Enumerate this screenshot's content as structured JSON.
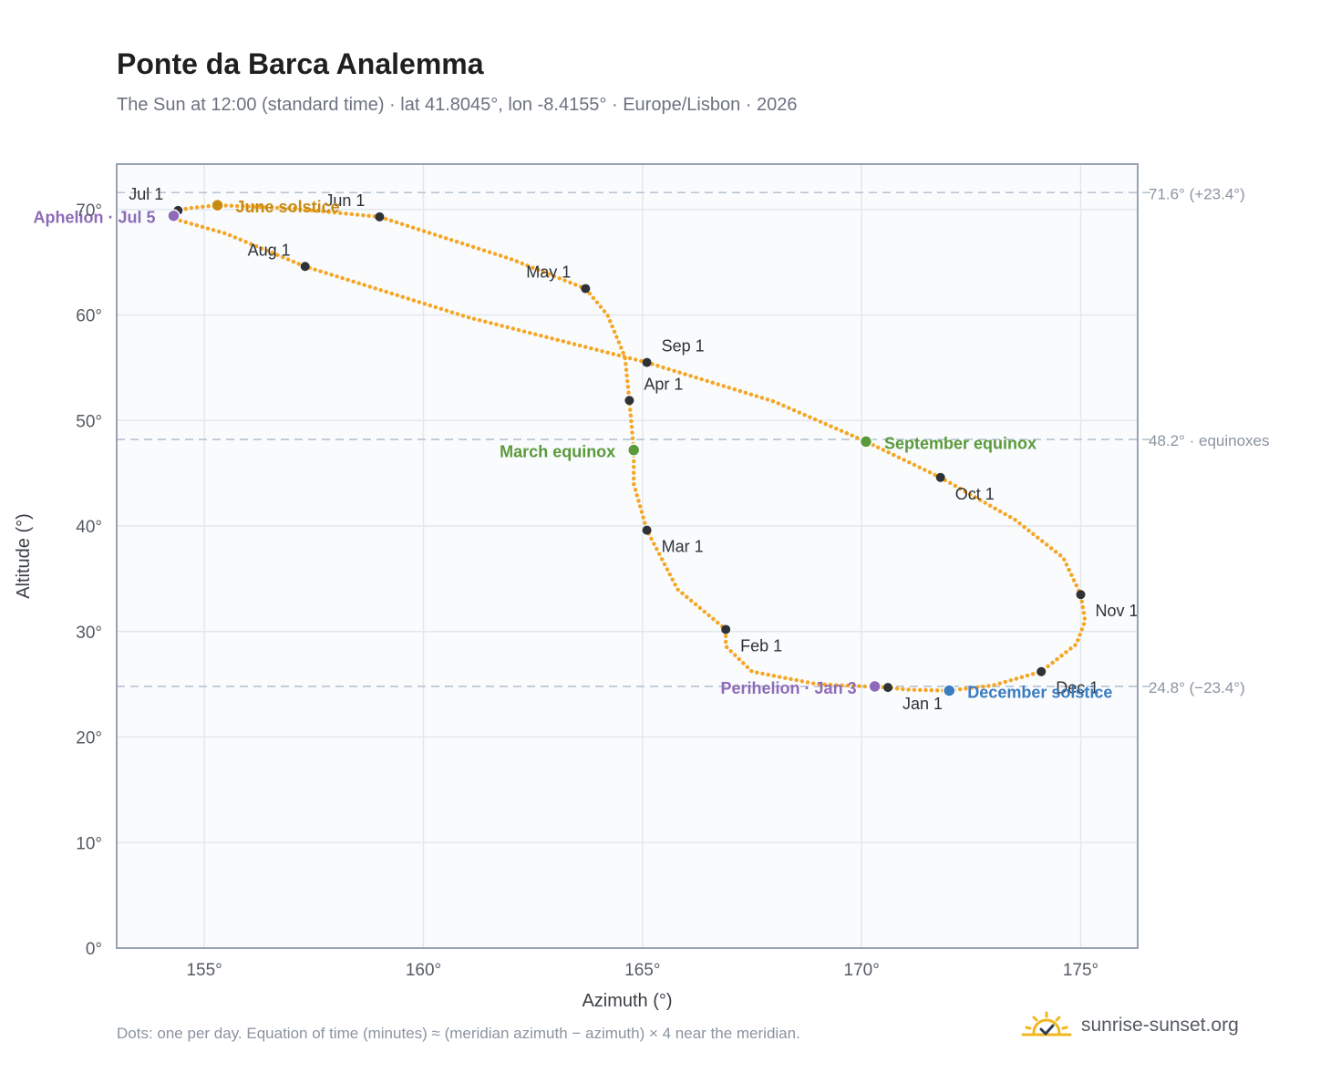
{
  "header": {
    "title": "Ponte da Barca Analemma",
    "subtitle": "The Sun at 12:00 (standard time) · lat 41.8045°, lon -8.4155° · Europe/Lisbon · 2026"
  },
  "footer": {
    "note": "Dots: one per day. Equation of time (minutes) ≈ (meridian azimuth − azimuth) × 4 near the meridian.",
    "brand": "sunrise-sunset.org",
    "brand_icon": "sun-check-icon"
  },
  "colors": {
    "curve": "#f5a623",
    "month_marker": "#2f3337",
    "solstice_june": "#c98a12",
    "solstice_december": "#3a7cc0",
    "equinox": "#5a9a3a",
    "apsis": "#8e6bb8",
    "reference_line": "#b6c3d1",
    "plot_bg": "#f9fbfd",
    "grid": "#e3e8ee",
    "frame": "#98a2b0"
  },
  "chart_data": {
    "type": "scatter",
    "xlabel": "Azimuth (°)",
    "ylabel": "Altitude (°)",
    "xlim": [
      153,
      176.3
    ],
    "ylim": [
      0,
      74.3
    ],
    "xticks": [
      155,
      160,
      165,
      170,
      175
    ],
    "yticks": [
      0,
      10,
      20,
      30,
      40,
      50,
      60,
      70
    ],
    "tick_suffix": "°",
    "grid": true,
    "reference_lines": [
      {
        "y": 71.6,
        "label": "71.6° (+23.4°)"
      },
      {
        "y": 48.2,
        "label": "48.2° · equinoxes"
      },
      {
        "y": 24.8,
        "label": "24.8° (−23.4°)"
      }
    ],
    "path_points": [
      {
        "az": 170.6,
        "alt": 24.7
      },
      {
        "az": 169.0,
        "alt": 25.0
      },
      {
        "az": 167.5,
        "alt": 26.2
      },
      {
        "az": 166.9,
        "alt": 28.6
      },
      {
        "az": 166.9,
        "alt": 30.2
      },
      {
        "az": 165.8,
        "alt": 34.0
      },
      {
        "az": 165.1,
        "alt": 39.6
      },
      {
        "az": 164.8,
        "alt": 44.0
      },
      {
        "az": 164.8,
        "alt": 47.2
      },
      {
        "az": 164.7,
        "alt": 51.9
      },
      {
        "az": 164.6,
        "alt": 56.0
      },
      {
        "az": 164.2,
        "alt": 60.0
      },
      {
        "az": 163.7,
        "alt": 62.5
      },
      {
        "az": 162.0,
        "alt": 65.3
      },
      {
        "az": 159.0,
        "alt": 69.3
      },
      {
        "az": 157.0,
        "alt": 70.1
      },
      {
        "az": 155.3,
        "alt": 70.4
      },
      {
        "az": 154.6,
        "alt": 70.1
      },
      {
        "az": 154.3,
        "alt": 69.6
      },
      {
        "az": 154.4,
        "alt": 69.0
      },
      {
        "az": 155.5,
        "alt": 67.7
      },
      {
        "az": 157.3,
        "alt": 64.6
      },
      {
        "az": 161.0,
        "alt": 59.8
      },
      {
        "az": 165.1,
        "alt": 55.5
      },
      {
        "az": 168.0,
        "alt": 51.8
      },
      {
        "az": 170.1,
        "alt": 48.0
      },
      {
        "az": 171.8,
        "alt": 44.6
      },
      {
        "az": 173.5,
        "alt": 40.6
      },
      {
        "az": 174.6,
        "alt": 37.0
      },
      {
        "az": 175.0,
        "alt": 33.5
      },
      {
        "az": 175.1,
        "alt": 31.0
      },
      {
        "az": 174.9,
        "alt": 28.8
      },
      {
        "az": 174.1,
        "alt": 26.2
      },
      {
        "az": 173.0,
        "alt": 24.9
      },
      {
        "az": 172.0,
        "alt": 24.4
      },
      {
        "az": 171.0,
        "alt": 24.5
      },
      {
        "az": 170.6,
        "alt": 24.7
      }
    ],
    "month_markers": [
      {
        "label": "Jan 1",
        "az": 170.6,
        "alt": 24.7,
        "anchor": "start",
        "dx": 16,
        "dy": 24
      },
      {
        "label": "Feb 1",
        "az": 166.9,
        "alt": 30.2,
        "anchor": "start",
        "dx": 16,
        "dy": 24
      },
      {
        "label": "Mar 1",
        "az": 165.1,
        "alt": 39.6,
        "anchor": "start",
        "dx": 16,
        "dy": 24
      },
      {
        "label": "Apr 1",
        "az": 164.7,
        "alt": 51.9,
        "anchor": "start",
        "dx": 16,
        "dy": -12
      },
      {
        "label": "May 1",
        "az": 163.7,
        "alt": 62.5,
        "anchor": "end",
        "dx": -16,
        "dy": -12
      },
      {
        "label": "Jun 1",
        "az": 159.0,
        "alt": 69.3,
        "anchor": "end",
        "dx": -16,
        "dy": -12
      },
      {
        "label": "Jul 1",
        "az": 154.4,
        "alt": 69.9,
        "anchor": "end",
        "dx": -16,
        "dy": -12
      },
      {
        "label": "Aug 1",
        "az": 157.3,
        "alt": 64.6,
        "anchor": "end",
        "dx": -16,
        "dy": -12
      },
      {
        "label": "Sep 1",
        "az": 165.1,
        "alt": 55.5,
        "anchor": "start",
        "dx": 16,
        "dy": -12
      },
      {
        "label": "Oct 1",
        "az": 171.8,
        "alt": 44.6,
        "anchor": "start",
        "dx": 16,
        "dy": 24
      },
      {
        "label": "Nov 1",
        "az": 175.0,
        "alt": 33.5,
        "anchor": "start",
        "dx": 16,
        "dy": 24
      },
      {
        "label": "Dec 1",
        "az": 174.1,
        "alt": 26.2,
        "anchor": "start",
        "dx": 16,
        "dy": 24
      }
    ],
    "events": [
      {
        "label": "June solstice",
        "az": 155.3,
        "alt": 70.4,
        "kind": "solstice_june",
        "anchor": "start",
        "dx": 20,
        "dy": 8
      },
      {
        "label": "December solstice",
        "az": 172.0,
        "alt": 24.4,
        "kind": "solstice_december",
        "anchor": "start",
        "dx": 20,
        "dy": 8
      },
      {
        "label": "March equinox",
        "az": 164.8,
        "alt": 47.2,
        "kind": "equinox",
        "anchor": "end",
        "dx": -20,
        "dy": 8
      },
      {
        "label": "September equinox",
        "az": 170.1,
        "alt": 48.0,
        "kind": "equinox",
        "anchor": "start",
        "dx": 20,
        "dy": 8
      },
      {
        "label": "Aphelion · Jul 5",
        "az": 154.3,
        "alt": 69.4,
        "kind": "apsis",
        "anchor": "end",
        "dx": -20,
        "dy": 8
      },
      {
        "label": "Perihelion · Jan 3",
        "az": 170.3,
        "alt": 24.8,
        "kind": "apsis",
        "anchor": "end",
        "dx": -20,
        "dy": 8
      }
    ]
  }
}
